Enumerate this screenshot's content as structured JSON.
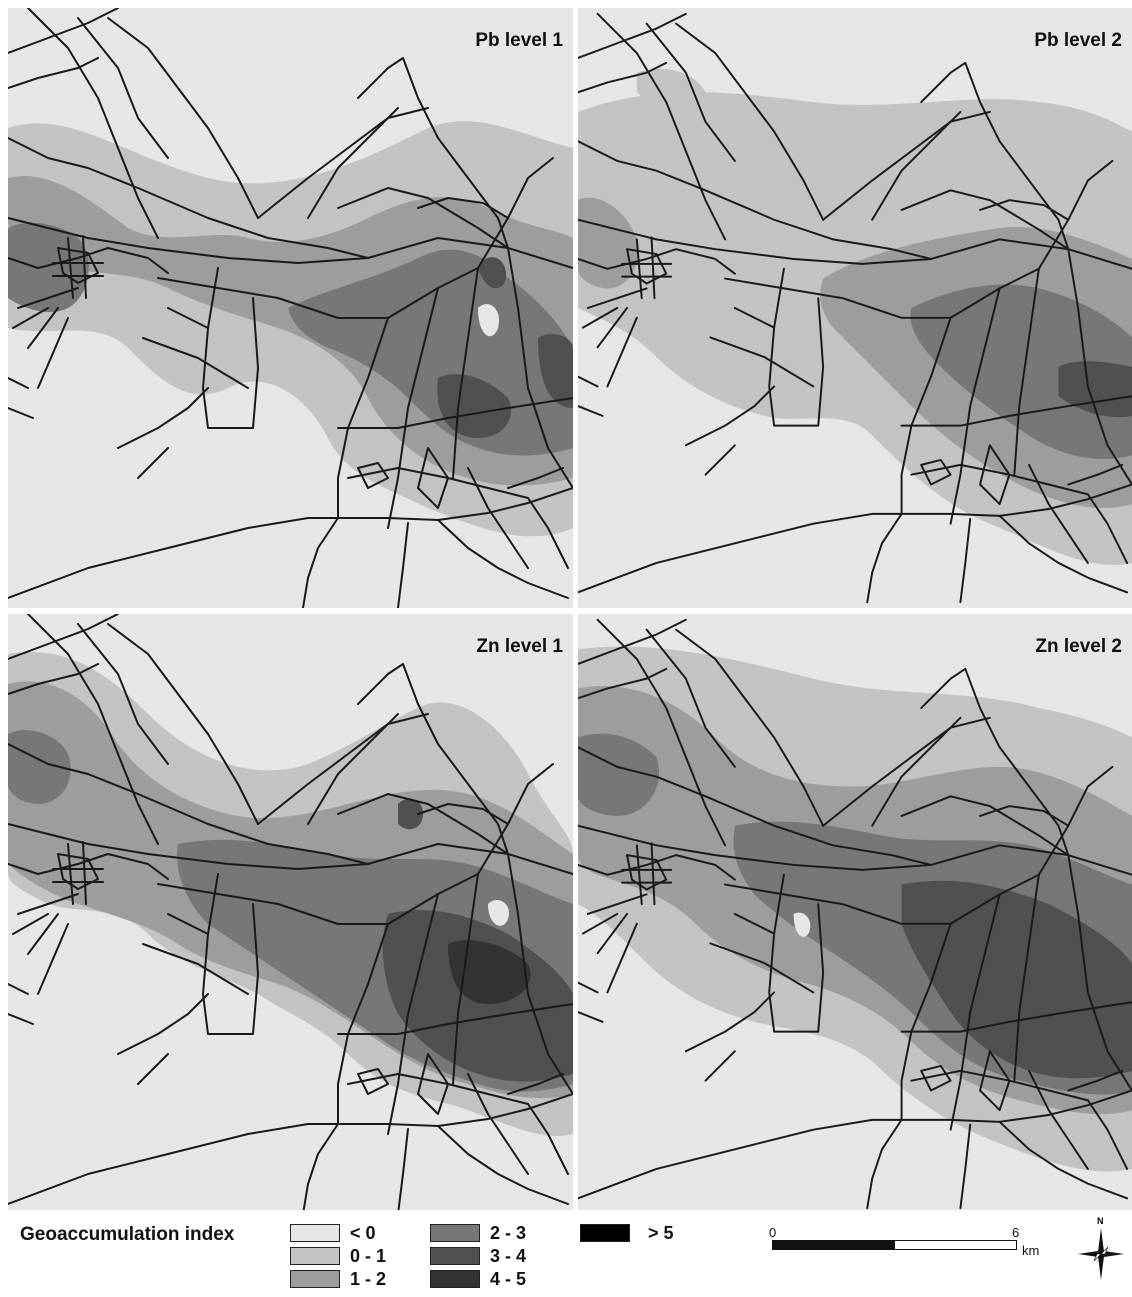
{
  "panels": [
    {
      "id": "pb1",
      "title": "Pb level 1",
      "icon": "contour-map"
    },
    {
      "id": "pb2",
      "title": "Pb level 2",
      "icon": "contour-map"
    },
    {
      "id": "zn1",
      "title": "Zn level 1",
      "icon": "contour-map"
    },
    {
      "id": "zn2",
      "title": "Zn level 2",
      "icon": "contour-map"
    }
  ],
  "legend": {
    "title": "Geoaccumulation index",
    "classes": [
      {
        "label": "< 0",
        "color": "#e6e6e6"
      },
      {
        "label": "0 - 1",
        "color": "#c3c3c3"
      },
      {
        "label": "1 - 2",
        "color": "#9d9d9d"
      },
      {
        "label": "2 - 3",
        "color": "#777777"
      },
      {
        "label": "3 - 4",
        "color": "#505050"
      },
      {
        "label": "4 - 5",
        "color": "#333333"
      },
      {
        "label": "> 5",
        "color": "#000000"
      }
    ]
  },
  "scale": {
    "start": "0",
    "end": "6",
    "unit": "km"
  },
  "north": {
    "label": "N",
    "icon": "north-arrow-icon"
  }
}
